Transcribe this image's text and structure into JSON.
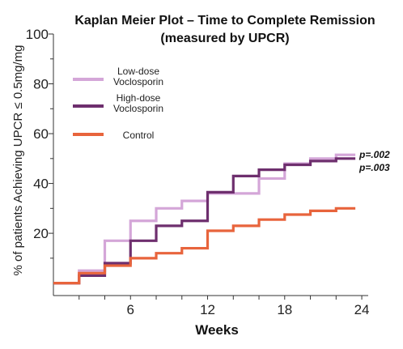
{
  "chart_data": {
    "type": "line",
    "subtype": "kaplan-meier-step",
    "title": [
      "Kaplan Meier Plot – Time to Complete Remission",
      "(measured by UPCR)"
    ],
    "xlabel": "Weeks",
    "ylabel": "% of patients Achieving UPCR ≤ 0.5mg/mg",
    "xlim": [
      0,
      24.5
    ],
    "ylim": [
      -5,
      100
    ],
    "x_ticks": [
      6,
      12,
      18,
      24
    ],
    "y_ticks": [
      20,
      40,
      60,
      80,
      100
    ],
    "grid": false,
    "legend_position": "top-left",
    "series": [
      {
        "name": "Low-dose\nVoclosporin",
        "color": "#d4a6d8",
        "x": [
          0,
          2,
          4,
          6,
          8,
          10,
          12,
          14,
          16,
          18,
          20,
          22,
          23.5
        ],
        "y": [
          0,
          5,
          17,
          25,
          30,
          33,
          36,
          36,
          42,
          48,
          50,
          51.5,
          51.5
        ]
      },
      {
        "name": "High-dose\nVoclosporin",
        "color": "#6e2f6e",
        "x": [
          0,
          2,
          4,
          6,
          8,
          10,
          12,
          14,
          16,
          18,
          20,
          22,
          23.5
        ],
        "y": [
          0,
          3,
          8,
          17,
          23,
          25,
          36.5,
          43,
          45.5,
          47.5,
          49,
          50,
          50
        ]
      },
      {
        "name": "Control",
        "color": "#e8643c",
        "x": [
          0,
          2,
          4,
          6,
          8,
          10,
          12,
          14,
          16,
          18,
          20,
          22,
          23.5
        ],
        "y": [
          0,
          4,
          7,
          10,
          12,
          14,
          21,
          23,
          25.5,
          27.5,
          29,
          30,
          30
        ]
      }
    ],
    "annotations": [
      "p=.002",
      "p=.003"
    ]
  }
}
